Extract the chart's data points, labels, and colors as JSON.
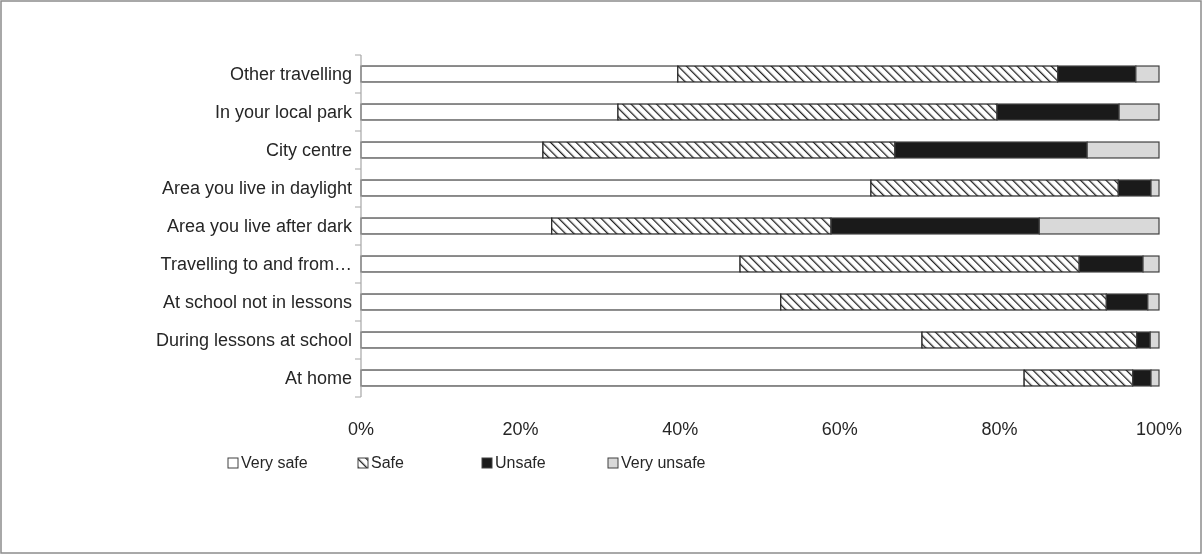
{
  "chart_data": {
    "type": "bar",
    "orientation": "horizontal",
    "stacked": true,
    "categories": [
      "Other travelling",
      "In your local park",
      "City centre",
      "Area you live in daylight",
      "Area you live after dark",
      "Travelling to and from…",
      "At school not in lessons",
      "During lessons at school",
      "At home"
    ],
    "series": [
      {
        "name": "Very safe",
        "color": "#ffffff",
        "values": [
          39.7,
          32.2,
          22.8,
          63.9,
          23.9,
          47.5,
          52.6,
          70.3,
          83.1
        ]
      },
      {
        "name": "Safe",
        "color": "#222222",
        "values": [
          47.6,
          47.5,
          44.1,
          31.0,
          35.0,
          42.5,
          40.8,
          26.9,
          13.6
        ]
      },
      {
        "name": "Unsafe",
        "color": "#1a1a1a",
        "values": [
          9.8,
          15.3,
          24.1,
          4.1,
          26.1,
          8.0,
          5.2,
          1.7,
          2.3
        ]
      },
      {
        "name": "Very unsafe",
        "color": "#d9d9d9",
        "values": [
          2.9,
          5.0,
          9.0,
          1.0,
          15.0,
          2.0,
          1.4,
          1.1,
          1.0
        ]
      }
    ],
    "xlim": [
      0,
      100
    ],
    "xticks": [
      {
        "value": 0,
        "label": "0%"
      },
      {
        "value": 20,
        "label": "20%"
      },
      {
        "value": 40,
        "label": "40%"
      },
      {
        "value": 60,
        "label": "60%"
      },
      {
        "value": 80,
        "label": "80%"
      },
      {
        "value": 100,
        "label": "100%"
      }
    ],
    "legend": "bottom",
    "grid": false
  }
}
